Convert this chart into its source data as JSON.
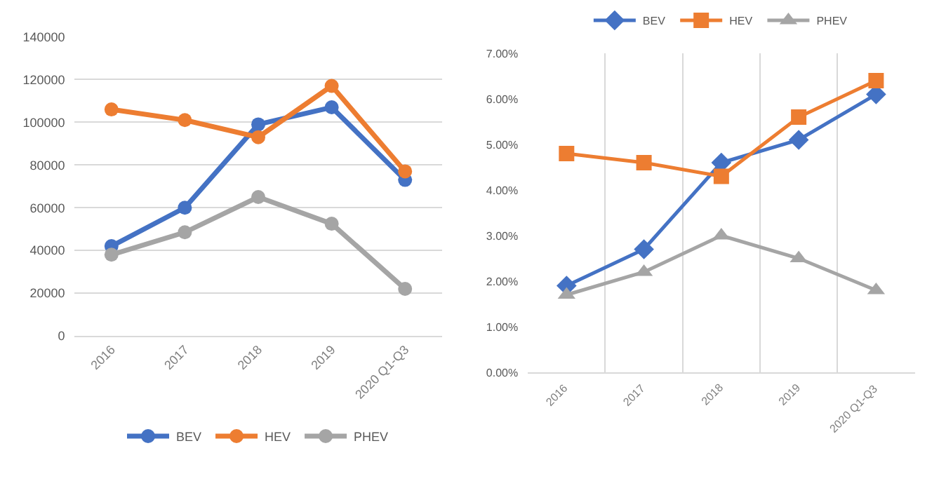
{
  "chart_data": [
    {
      "type": "line",
      "categories": [
        "2016",
        "2017",
        "2018",
        "2019",
        "2020 Q1-Q3"
      ],
      "series": [
        {
          "name": "BEV",
          "color": "#4472c4",
          "values": [
            42000,
            60000,
            99000,
            107000,
            73000
          ]
        },
        {
          "name": "HEV",
          "color": "#ed7d31",
          "values": [
            106000,
            101000,
            93000,
            117000,
            77000
          ]
        },
        {
          "name": "PHEV",
          "color": "#a5a5a5",
          "values": [
            38000,
            48500,
            65000,
            52500,
            22000
          ]
        }
      ],
      "marker": "circle",
      "ylim": [
        0,
        140000
      ],
      "yticks": [
        0,
        20000,
        40000,
        60000,
        80000,
        100000,
        120000,
        140000
      ],
      "grid": "y",
      "legend": "bottom"
    },
    {
      "type": "line",
      "categories": [
        "2016",
        "2017",
        "2018",
        "2019",
        "2020 Q1-Q3"
      ],
      "series": [
        {
          "name": "BEV",
          "color": "#4472c4",
          "marker": "diamond",
          "values": [
            1.9,
            2.7,
            4.6,
            5.1,
            6.1
          ]
        },
        {
          "name": "HEV",
          "color": "#ed7d31",
          "marker": "square",
          "values": [
            4.8,
            4.6,
            4.3,
            5.6,
            6.4
          ]
        },
        {
          "name": "PHEV",
          "color": "#a5a5a5",
          "marker": "triangle",
          "values": [
            1.7,
            2.2,
            3.0,
            2.5,
            1.8
          ]
        }
      ],
      "ylim": [
        0,
        7
      ],
      "yticks": [
        {
          "value": 0,
          "label": "0.00%"
        },
        {
          "value": 1,
          "label": "1.00%"
        },
        {
          "value": 2,
          "label": "2.00%"
        },
        {
          "value": 3,
          "label": "3.00%"
        },
        {
          "value": 4,
          "label": "4.00%"
        },
        {
          "value": 5,
          "label": "5.00%"
        },
        {
          "value": 6,
          "label": "6.00%"
        },
        {
          "value": 7,
          "label": "7.00%"
        }
      ],
      "grid": "x",
      "legend": "top"
    }
  ]
}
